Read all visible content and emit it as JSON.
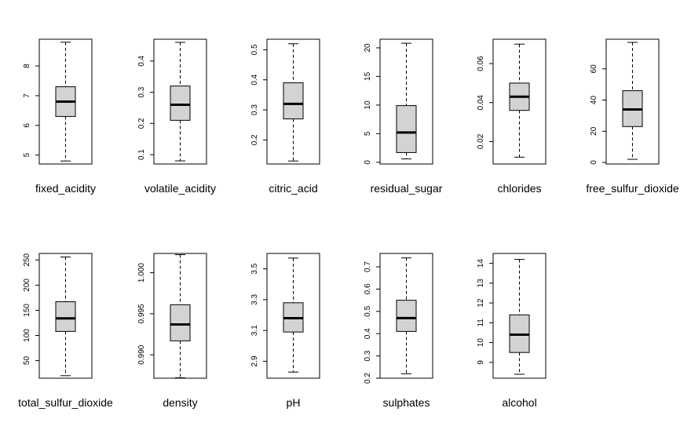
{
  "chart_data": [
    {
      "type": "box",
      "xlabel": "fixed_acidity",
      "ylim": [
        4.7,
        8.9
      ],
      "yticks": [
        "5",
        "6",
        "7",
        "8"
      ],
      "ytick_values": [
        5,
        6,
        7,
        8
      ],
      "min": 4.8,
      "q1": 6.3,
      "median": 6.8,
      "q3": 7.3,
      "max": 8.8,
      "fill": "#d3d3d3"
    },
    {
      "type": "box",
      "xlabel": "volatile_acidity",
      "ylim": [
        0.07,
        0.47
      ],
      "yticks": [
        "0.1",
        "0.2",
        "0.3",
        "0.4"
      ],
      "ytick_values": [
        0.1,
        0.2,
        0.3,
        0.4
      ],
      "min": 0.08,
      "q1": 0.21,
      "median": 0.26,
      "q3": 0.32,
      "max": 0.46,
      "fill": "#d3d3d3"
    },
    {
      "type": "box",
      "xlabel": "citric_acid",
      "ylim": [
        0.12,
        0.535
      ],
      "yticks": [
        "0.2",
        "0.3",
        "0.4",
        "0.5"
      ],
      "ytick_values": [
        0.2,
        0.3,
        0.4,
        0.5
      ],
      "min": 0.13,
      "q1": 0.27,
      "median": 0.32,
      "q3": 0.39,
      "max": 0.52,
      "fill": "#d3d3d3"
    },
    {
      "type": "box",
      "xlabel": "residual_sugar",
      "ylim": [
        -0.3,
        21.5
      ],
      "yticks": [
        "0",
        "5",
        "10",
        "15",
        "20"
      ],
      "ytick_values": [
        0,
        5,
        10,
        15,
        20
      ],
      "min": 0.6,
      "q1": 1.7,
      "median": 5.2,
      "q3": 9.9,
      "max": 20.8,
      "fill": "#d3d3d3"
    },
    {
      "type": "box",
      "xlabel": "chlorides",
      "ylim": [
        0.0085,
        0.0725
      ],
      "yticks": [
        "0.02",
        "0.04",
        "0.06"
      ],
      "ytick_values": [
        0.02,
        0.04,
        0.06
      ],
      "min": 0.012,
      "q1": 0.036,
      "median": 0.043,
      "q3": 0.05,
      "max": 0.07,
      "fill": "#d3d3d3"
    },
    {
      "type": "box",
      "xlabel": "free_sulfur_dioxide",
      "ylim": [
        -1,
        79
      ],
      "yticks": [
        "0",
        "20",
        "40",
        "60"
      ],
      "ytick_values": [
        0,
        20,
        40,
        60
      ],
      "min": 2,
      "q1": 23,
      "median": 34,
      "q3": 46,
      "max": 77,
      "fill": "#d3d3d3"
    },
    {
      "type": "box",
      "xlabel": "total_sulfur_dioxide",
      "ylim": [
        15,
        263
      ],
      "yticks": [
        "50",
        "100",
        "150",
        "200",
        "250"
      ],
      "ytick_values": [
        50,
        100,
        150,
        200,
        250
      ],
      "min": 20,
      "q1": 108,
      "median": 134,
      "q3": 167,
      "max": 256,
      "fill": "#d3d3d3"
    },
    {
      "type": "box",
      "xlabel": "density",
      "ylim": [
        0.98715,
        1.00235
      ],
      "yticks": [
        "0.990",
        "0.995",
        "1.000"
      ],
      "ytick_values": [
        0.99,
        0.995,
        1.0
      ],
      "min": 0.9872,
      "q1": 0.9917,
      "median": 0.9937,
      "q3": 0.9961,
      "max": 1.0022,
      "fill": "#d3d3d3"
    },
    {
      "type": "box",
      "xlabel": "pH",
      "ylim": [
        2.79,
        3.6
      ],
      "yticks": [
        "2.9",
        "3.1",
        "3.3",
        "3.5"
      ],
      "ytick_values": [
        2.9,
        3.1,
        3.3,
        3.5
      ],
      "min": 2.83,
      "q1": 3.09,
      "median": 3.18,
      "q3": 3.28,
      "max": 3.57,
      "fill": "#d3d3d3"
    },
    {
      "type": "box",
      "xlabel": "sulphates",
      "ylim": [
        0.2,
        0.76
      ],
      "yticks": [
        "0.2",
        "0.3",
        "0.4",
        "0.5",
        "0.6",
        "0.7"
      ],
      "ytick_values": [
        0.2,
        0.3,
        0.4,
        0.5,
        0.6,
        0.7
      ],
      "min": 0.22,
      "q1": 0.41,
      "median": 0.47,
      "q3": 0.55,
      "max": 0.74,
      "fill": "#d3d3d3"
    },
    {
      "type": "box",
      "xlabel": "alcohol",
      "ylim": [
        8.2,
        14.5
      ],
      "yticks": [
        "9",
        "10",
        "11",
        "12",
        "13",
        "14"
      ],
      "ytick_values": [
        9,
        10,
        11,
        12,
        13,
        14
      ],
      "min": 8.4,
      "q1": 9.5,
      "median": 10.4,
      "q3": 11.4,
      "max": 14.2,
      "fill": "#d3d3d3"
    }
  ]
}
